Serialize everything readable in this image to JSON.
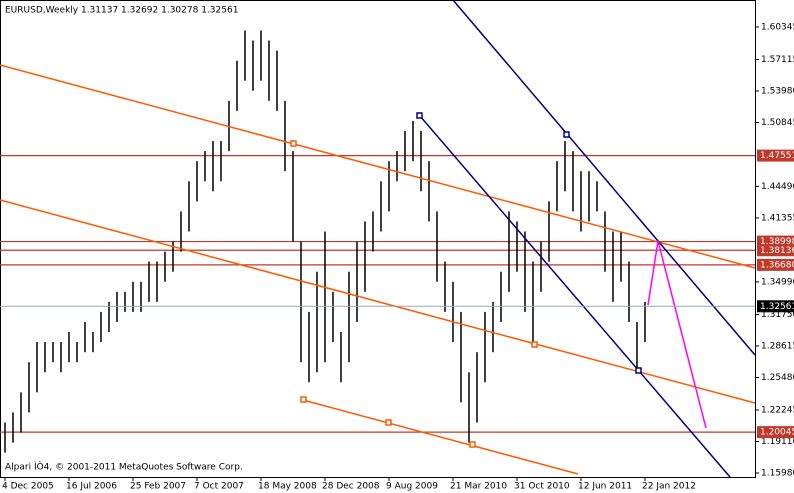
{
  "chart_data": {
    "type": "hilo",
    "title": "EURUSD,Weekly  1.31137 1.32692 1.30278 1.32561",
    "footer": "Alpari ÌÒ4, © 2001-2011 MetaQuotes Software Corp.",
    "categories": [
      "4 Dec 2005",
      null,
      null,
      null,
      null,
      null,
      null,
      null,
      "16 Jul 2006",
      null,
      null,
      null,
      null,
      null,
      null,
      null,
      "25 Feb 2007",
      null,
      null,
      null,
      null,
      null,
      null,
      null,
      "7 Oct 2007",
      null,
      null,
      null,
      null,
      null,
      null,
      null,
      "18 May 2008",
      null,
      null,
      null,
      null,
      null,
      null,
      null,
      "28 Dec 2008",
      null,
      null,
      null,
      null,
      null,
      null,
      null,
      "9 Aug 2009",
      null,
      null,
      null,
      null,
      null,
      null,
      null,
      "21 Mar 2010",
      null,
      null,
      null,
      null,
      null,
      null,
      null,
      "31 Oct 2010",
      null,
      null,
      null,
      null,
      null,
      null,
      null,
      "12 Jun 2011",
      null,
      null,
      null,
      null,
      null,
      null,
      null,
      "22 Jan 2012"
    ],
    "series": [
      {
        "name": "EURUSD",
        "color": "#000000",
        "lows": [
          1.18,
          1.19,
          1.2,
          1.22,
          1.24,
          1.26,
          1.27,
          1.26,
          1.27,
          1.27,
          1.28,
          1.28,
          1.29,
          1.3,
          1.31,
          1.32,
          1.32,
          1.32,
          1.33,
          1.33,
          1.35,
          1.36,
          1.38,
          1.4,
          1.43,
          1.45,
          1.44,
          1.45,
          1.48,
          1.52,
          1.55,
          1.54,
          1.55,
          1.53,
          1.52,
          1.46,
          1.39,
          1.27,
          1.25,
          1.26,
          1.27,
          1.29,
          1.25,
          1.27,
          1.31,
          1.34,
          1.38,
          1.4,
          1.42,
          1.45,
          1.46,
          1.47,
          1.44,
          1.41,
          1.35,
          1.32,
          1.29,
          1.23,
          1.19,
          1.21,
          1.25,
          1.28,
          1.31,
          1.34,
          1.36,
          1.32,
          1.29,
          1.34,
          1.37,
          1.42,
          1.44,
          1.42,
          1.4,
          1.41,
          1.42,
          1.36,
          1.33,
          1.35,
          1.31,
          1.26,
          1.29
        ],
        "highs": [
          1.21,
          1.22,
          1.24,
          1.27,
          1.29,
          1.29,
          1.29,
          1.29,
          1.3,
          1.29,
          1.31,
          1.3,
          1.32,
          1.33,
          1.34,
          1.34,
          1.35,
          1.35,
          1.37,
          1.37,
          1.38,
          1.39,
          1.42,
          1.45,
          1.47,
          1.48,
          1.49,
          1.49,
          1.53,
          1.57,
          1.6,
          1.59,
          1.6,
          1.59,
          1.58,
          1.53,
          1.48,
          1.39,
          1.32,
          1.36,
          1.4,
          1.34,
          1.3,
          1.36,
          1.39,
          1.41,
          1.42,
          1.45,
          1.47,
          1.48,
          1.5,
          1.51,
          1.5,
          1.47,
          1.42,
          1.37,
          1.35,
          1.32,
          1.26,
          1.28,
          1.32,
          1.33,
          1.36,
          1.42,
          1.41,
          1.4,
          1.37,
          1.39,
          1.43,
          1.47,
          1.49,
          1.48,
          1.46,
          1.46,
          1.45,
          1.42,
          1.4,
          1.4,
          1.37,
          1.31,
          1.33
        ]
      }
    ],
    "ylim": [
      1.1558,
      1.6303
    ],
    "yticks": [
      1.60345,
      1.57115,
      {
        "value": 1.5398,
        "label": "1.53980"
      },
      1.50845,
      {
        "value": 1.4449,
        "label": "1.44490"
      },
      1.41355,
      {
        "value": 1.3499,
        "label": "1.34990"
      },
      {
        "value": 1.3175,
        "label": "1.31750"
      },
      1.28615,
      {
        "value": 1.2548,
        "label": "1.25480"
      },
      1.22245,
      {
        "value": 1.1911,
        "label": "1.19110"
      },
      {
        "value": 1.1598,
        "label": "1.15980"
      }
    ],
    "levels": [
      1.47551,
      1.38998,
      1.38136,
      {
        "value": 1.3668,
        "label": "1.36680"
      },
      1.20045
    ],
    "level_color": "#c0392b",
    "current_price": 1.32561
  }
}
